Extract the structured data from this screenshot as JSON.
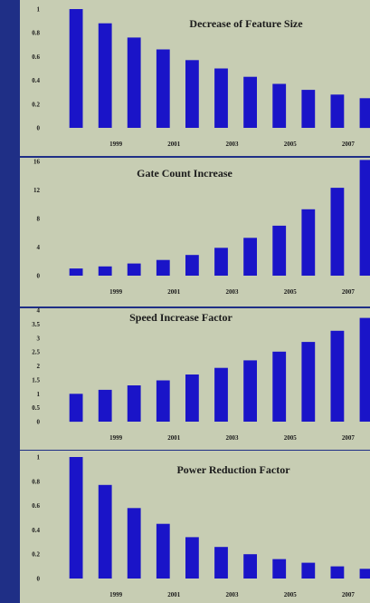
{
  "colors": {
    "background": "#1f2f86",
    "panel": "#c7cdb3",
    "bar": "#1a14c8",
    "text": "#1b1b1b"
  },
  "chart_data": [
    {
      "type": "bar",
      "title": "Decrease of Feature Size",
      "x": [
        1998,
        1999,
        2000,
        2001,
        2002,
        2003,
        2004,
        2005,
        2006,
        2007,
        2008
      ],
      "xtick_labels": [
        "1999",
        "2001",
        "2003",
        "2005",
        "2007"
      ],
      "values": [
        1.0,
        0.88,
        0.76,
        0.66,
        0.57,
        0.5,
        0.43,
        0.37,
        0.32,
        0.28,
        0.25
      ],
      "yticks": [
        0,
        0.2,
        0.4,
        0.6,
        0.8,
        1
      ],
      "ytick_labels": [
        "0",
        "0.2",
        "0.4",
        "0.6",
        "0.8",
        "1"
      ],
      "ylim": [
        0,
        1
      ],
      "grid": false
    },
    {
      "type": "bar",
      "title": "Gate Count Increase",
      "x": [
        1998,
        1999,
        2000,
        2001,
        2002,
        2003,
        2004,
        2005,
        2006,
        2007,
        2008
      ],
      "xtick_labels": [
        "1999",
        "2001",
        "2003",
        "2005",
        "2007"
      ],
      "values": [
        1.0,
        1.3,
        1.7,
        2.2,
        2.9,
        3.9,
        5.3,
        7.0,
        9.3,
        12.3,
        16.2
      ],
      "yticks": [
        0,
        4,
        8,
        12,
        16
      ],
      "ytick_labels": [
        "0",
        "4",
        "8",
        "12",
        "16"
      ],
      "ylim": [
        0,
        16
      ],
      "grid": false
    },
    {
      "type": "bar",
      "title": "Speed Increase Factor",
      "x": [
        1998,
        1999,
        2000,
        2001,
        2002,
        2003,
        2004,
        2005,
        2006,
        2007,
        2008
      ],
      "xtick_labels": [
        "1999",
        "2001",
        "2003",
        "2005",
        "2007"
      ],
      "values": [
        1.0,
        1.14,
        1.3,
        1.48,
        1.69,
        1.93,
        2.2,
        2.51,
        2.86,
        3.26,
        3.72
      ],
      "yticks": [
        0,
        0.5,
        1,
        1.5,
        2,
        2.5,
        3,
        3.5,
        4
      ],
      "ytick_labels": [
        "0",
        "0.5",
        "1",
        "1.5",
        "2",
        "2.5",
        "3",
        "3.5",
        "4"
      ],
      "ylim": [
        0,
        4
      ],
      "grid": false
    },
    {
      "type": "bar",
      "title": "Power Reduction Factor",
      "x": [
        1998,
        1999,
        2000,
        2001,
        2002,
        2003,
        2004,
        2005,
        2006,
        2007,
        2008
      ],
      "xtick_labels": [
        "1999",
        "2001",
        "2003",
        "2005",
        "2007"
      ],
      "values": [
        1.0,
        0.77,
        0.58,
        0.45,
        0.34,
        0.26,
        0.2,
        0.16,
        0.13,
        0.1,
        0.08
      ],
      "yticks": [
        0,
        0.2,
        0.4,
        0.6,
        0.8,
        1
      ],
      "ytick_labels": [
        "0",
        "0.2",
        "0.4",
        "0.6",
        "0.8",
        "1"
      ],
      "ylim": [
        0,
        1
      ],
      "grid": false
    }
  ]
}
